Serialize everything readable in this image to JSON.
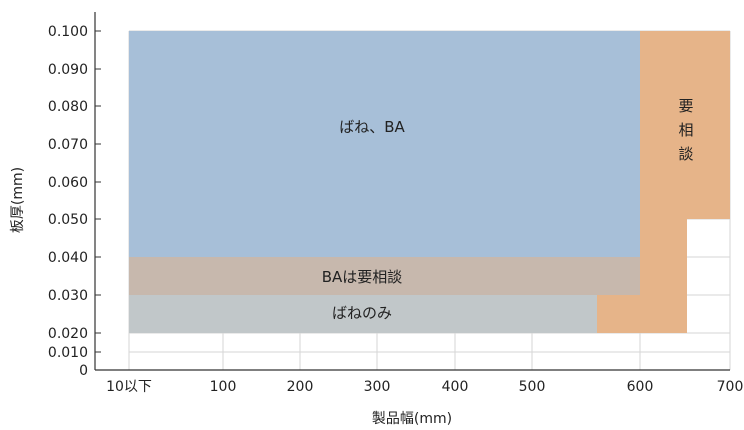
{
  "chart_data": {
    "type": "area",
    "title": "",
    "xlabel": "製品幅(mm)",
    "ylabel": "板厚(mm)",
    "x_ticks": [
      {
        "value": 10,
        "label": "10以下"
      },
      {
        "value": 100,
        "label": "100"
      },
      {
        "value": 200,
        "label": "200"
      },
      {
        "value": 300,
        "label": "300"
      },
      {
        "value": 400,
        "label": "400"
      },
      {
        "value": 500,
        "label": "500"
      },
      {
        "value": 600,
        "label": "600"
      },
      {
        "value": 700,
        "label": "700"
      }
    ],
    "y_ticks": [
      {
        "value": 0,
        "label": "0"
      },
      {
        "value": 0.01,
        "label": "0.010"
      },
      {
        "value": 0.02,
        "label": "0.020"
      },
      {
        "value": 0.03,
        "label": "0.030"
      },
      {
        "value": 0.04,
        "label": "0.040"
      },
      {
        "value": 0.05,
        "label": "0.050"
      },
      {
        "value": 0.06,
        "label": "0.060"
      },
      {
        "value": 0.07,
        "label": "0.070"
      },
      {
        "value": 0.08,
        "label": "0.080"
      },
      {
        "value": 0.09,
        "label": "0.090"
      },
      {
        "value": 0.1,
        "label": "0.100"
      }
    ],
    "xlim": [
      10,
      700
    ],
    "ylim": [
      0,
      0.1
    ],
    "grid": true,
    "regions": [
      {
        "label": "ばね、BA",
        "color": "#a7bfd8",
        "points": [
          [
            10,
            0.04
          ],
          [
            600,
            0.04
          ],
          [
            600,
            0.1
          ],
          [
            10,
            0.1
          ]
        ]
      },
      {
        "label": "BAは要相談",
        "color": "#c7b8ad",
        "points": [
          [
            10,
            0.03
          ],
          [
            600,
            0.03
          ],
          [
            600,
            0.04
          ],
          [
            10,
            0.04
          ]
        ]
      },
      {
        "label": "ばねのみ",
        "color": "#c1c7c9",
        "points": [
          [
            10,
            0.02
          ],
          [
            545,
            0.02
          ],
          [
            545,
            0.03
          ],
          [
            10,
            0.03
          ]
        ]
      },
      {
        "label": "要\n相\n談",
        "color": "#e6b489",
        "points": [
          [
            600,
            0.1
          ],
          [
            700,
            0.1
          ],
          [
            700,
            0.05
          ],
          [
            650,
            0.05
          ],
          [
            650,
            0.02
          ],
          [
            545,
            0.02
          ],
          [
            545,
            0.03
          ],
          [
            600,
            0.03
          ]
        ]
      }
    ]
  }
}
